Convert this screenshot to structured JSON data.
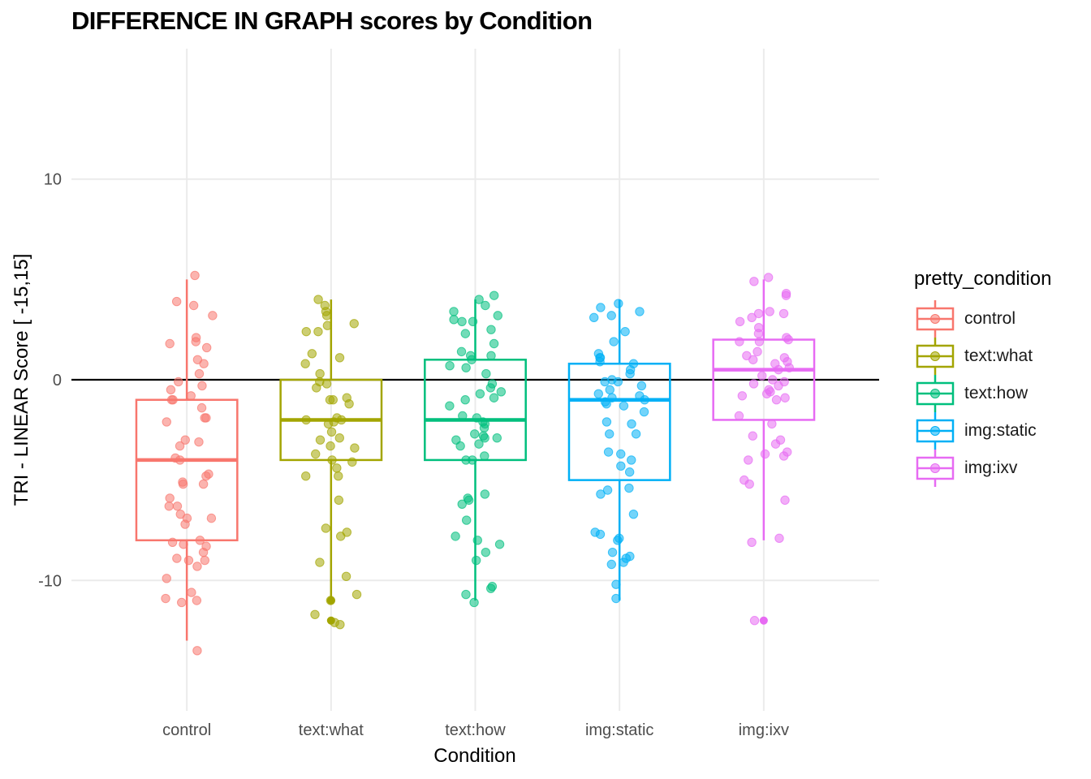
{
  "chart_data": {
    "type": "box",
    "title": "DIFFERENCE IN GRAPH scores by Condition",
    "xlabel": "Condition",
    "ylabel": "TRI - LINEAR Score [ -15,15]",
    "ylim": [
      -16.5,
      16.5
    ],
    "yticks": [
      -10,
      0,
      10
    ],
    "reference_line_y": 0,
    "grid": true,
    "legend_title": "pretty_condition",
    "legend_position": "right",
    "categories": [
      "control",
      "text:what",
      "text:how",
      "img:static",
      "img:ixv"
    ],
    "series": [
      {
        "name": "control",
        "color": "#F8766D",
        "box": {
          "lower_whisker": -13,
          "q1": -8,
          "median": -4,
          "q3": -1,
          "upper_whisker": 5
        },
        "outliers": [],
        "points": [
          5.2,
          3.9,
          3.7,
          3.2,
          2.1,
          1.9,
          1.8,
          1.6,
          1.0,
          0.8,
          0.3,
          -0.1,
          -0.3,
          -0.5,
          -0.8,
          -1.0,
          -1.0,
          -1.4,
          -1.9,
          -1.9,
          -2.1,
          -3.0,
          -3.1,
          -3.3,
          -3.9,
          -4.0,
          -4.7,
          -4.8,
          -5.1,
          -5.2,
          -5.2,
          -5.9,
          -6.3,
          -6.3,
          -6.7,
          -6.9,
          -6.9,
          -7.2,
          -8.0,
          -8.1,
          -8.2,
          -8.3,
          -8.6,
          -8.9,
          -9.0,
          -9.0,
          -9.3,
          -9.9,
          -10.6,
          -10.9,
          -11.0,
          -11.1,
          -13.5
        ]
      },
      {
        "name": "text:what",
        "color": "#A3A500",
        "box": {
          "lower_whisker": -11,
          "q1": -4,
          "median": -2,
          "q3": 0,
          "upper_whisker": 4
        },
        "outliers": [
          -11,
          -12
        ],
        "points": [
          4.0,
          3.7,
          3.4,
          3.2,
          2.8,
          2.7,
          2.4,
          2.4,
          1.3,
          1.1,
          0.8,
          0.3,
          -0.1,
          -0.2,
          -0.4,
          -0.9,
          -1.0,
          -1.0,
          -1.2,
          -1.9,
          -2.0,
          -2.0,
          -2.1,
          -2.2,
          -2.6,
          -2.9,
          -3.0,
          -3.3,
          -3.4,
          -3.7,
          -4.0,
          -4.1,
          -4.4,
          -4.8,
          -4.8,
          -6.0,
          -7.4,
          -7.6,
          -7.8,
          -9.1,
          -9.8,
          -10.7,
          -11.0,
          -11.7,
          -12.1,
          -12.2
        ]
      },
      {
        "name": "text:how",
        "color": "#00BF7D",
        "box": {
          "lower_whisker": -11,
          "q1": -4,
          "median": -2,
          "q3": 1,
          "upper_whisker": 4
        },
        "outliers": [],
        "points": [
          4.2,
          4.0,
          3.7,
          3.4,
          3.2,
          3.0,
          2.9,
          2.9,
          2.5,
          2.3,
          1.8,
          1.4,
          1.2,
          1.2,
          1.0,
          0.7,
          0.6,
          0.3,
          -0.2,
          -0.4,
          -0.6,
          -0.7,
          -0.9,
          -1.0,
          -1.3,
          -1.8,
          -1.9,
          -2.1,
          -2.2,
          -2.4,
          -2.7,
          -2.8,
          -2.9,
          -2.9,
          -3.0,
          -3.2,
          -3.3,
          -3.8,
          -4.0,
          -4.0,
          -5.7,
          -5.9,
          -6.0,
          -6.2,
          -7.0,
          -7.8,
          -8.0,
          -8.2,
          -8.6,
          -9.0,
          -10.3,
          -10.4,
          -10.7,
          -11.1
        ]
      },
      {
        "name": "img:static",
        "color": "#00B0F6",
        "box": {
          "lower_whisker": -11,
          "q1": -5,
          "median": -1,
          "q3": 0.8,
          "upper_whisker": 4
        },
        "outliers": [],
        "points": [
          3.8,
          3.6,
          3.4,
          3.2,
          3.1,
          2.4,
          1.9,
          1.3,
          1.1,
          1.1,
          0.9,
          0.8,
          0.5,
          0.3,
          0.0,
          -0.1,
          -0.1,
          -0.3,
          -0.5,
          -0.7,
          -0.8,
          -0.9,
          -1.0,
          -1.1,
          -1.2,
          -1.3,
          -1.6,
          -2.1,
          -2.2,
          -2.7,
          -2.7,
          -3.6,
          -3.7,
          -4.0,
          -4.3,
          -4.6,
          -5.4,
          -5.5,
          -5.7,
          -6.7,
          -7.6,
          -7.7,
          -7.9,
          -8.0,
          -8.6,
          -8.8,
          -8.9,
          -9.1,
          -9.2,
          -10.2,
          -10.9
        ]
      },
      {
        "name": "img:ixv",
        "color": "#E76BF3",
        "box": {
          "lower_whisker": -8,
          "q1": -2,
          "median": 0.5,
          "q3": 2,
          "upper_whisker": 5
        },
        "outliers": [
          -12
        ],
        "points": [
          5.1,
          4.9,
          4.3,
          4.2,
          3.4,
          3.3,
          3.3,
          3.1,
          2.9,
          2.6,
          2.3,
          2.1,
          2.0,
          1.9,
          1.9,
          1.4,
          1.2,
          1.1,
          1.0,
          0.9,
          0.8,
          0.6,
          0.5,
          0.2,
          0.0,
          -0.1,
          -0.2,
          -0.3,
          -0.5,
          -0.6,
          -0.7,
          -0.8,
          -0.9,
          -1.0,
          -1.8,
          -2.2,
          -2.8,
          -3.0,
          -3.2,
          -3.6,
          -3.7,
          -3.8,
          -4.0,
          -5.0,
          -5.2,
          -6.0,
          -7.9,
          -8.1,
          -12.0
        ]
      }
    ]
  }
}
